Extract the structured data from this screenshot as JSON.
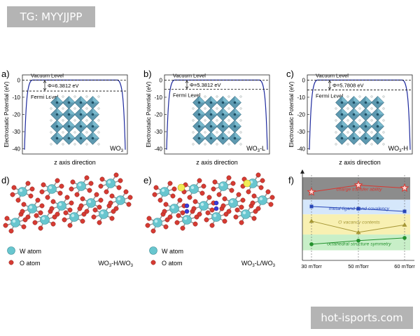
{
  "header_tag": "TG: MYYJJPP",
  "footer_watermark": "hot-isports.com",
  "colors": {
    "curve": "#1e2a9e",
    "w_atom": "#68c6cf",
    "o_atom": "#d63b33",
    "red_series": "#d9362f",
    "blue_series": "#2746b7",
    "olive_series": "#a59635",
    "green_series": "#23912d"
  },
  "chart_data": [
    {
      "type": "line",
      "panel": "a)",
      "ylabel": "Electrostatic Potential (eV)",
      "xlabel": "z axis direction",
      "yticks": [
        "0",
        "-10",
        "-20",
        "-30",
        "-40"
      ],
      "ylim": [
        -43,
        3
      ],
      "vacuum_label": "Vacuum Level",
      "fermi_label": "Fermi Level",
      "phi_label": "Φ=6.3812 eV",
      "phi": 6.3812,
      "material": "WO3",
      "material_base": "WO",
      "material_sub": "3",
      "material_suffix": ""
    },
    {
      "type": "line",
      "panel": "b)",
      "ylabel": "Electrostatic Potential (eV)",
      "xlabel": "z axis direction",
      "yticks": [
        "0",
        "-10",
        "-20",
        "-30",
        "-40"
      ],
      "ylim": [
        -43,
        3
      ],
      "vacuum_label": "Vacuum Level",
      "fermi_label": "Fermi Level",
      "phi_label": "Φ=5.3812 eV",
      "phi": 5.3812,
      "material": "WO3-L",
      "material_base": "WO",
      "material_sub": "3",
      "material_suffix": "-L"
    },
    {
      "type": "line",
      "panel": "c)",
      "ylabel": "Electrostatic Potential (eV)",
      "xlabel": "z axis direction",
      "yticks": [
        "0",
        "-10",
        "-20",
        "-30",
        "-40"
      ],
      "ylim": [
        -43,
        3
      ],
      "vacuum_label": "Vacuum Level",
      "fermi_label": "Fermi Level",
      "phi_label": "Φ=5.7808 eV",
      "phi": 5.7808,
      "material": "WO3-H",
      "material_base": "WO",
      "material_sub": "3",
      "material_suffix": "-H"
    },
    {
      "type": "line",
      "panel": "f)",
      "categories": [
        "30 mTorr",
        "50 mTorr",
        "60 mTorr"
      ],
      "series": [
        {
          "name": "charge transfer ability",
          "values": [
            3.55,
            3.85,
            3.72
          ],
          "marker": "star",
          "color_key": "red_series"
        },
        {
          "name": "metal-ligand bond covalency",
          "values": [
            2.9,
            2.8,
            2.68
          ],
          "marker": "square",
          "color_key": "blue_series"
        },
        {
          "name": "O vacancy contents",
          "values": [
            2.25,
            1.75,
            2.08
          ],
          "marker": "triangle",
          "color_key": "olive_series"
        },
        {
          "name": "octahedral structure symmetry",
          "values": [
            1.22,
            1.38,
            1.5
          ],
          "marker": "circle",
          "color_key": "green_series"
        }
      ],
      "ylim": [
        0.5,
        4.3
      ],
      "bands": [
        {
          "series": 0,
          "range": [
            3.2,
            4.2
          ],
          "color": "#8c8c8c"
        },
        {
          "series": 1,
          "range": [
            2.55,
            3.2
          ],
          "color": "#d5e7fb"
        },
        {
          "series": 2,
          "range": [
            1.65,
            2.55
          ],
          "color": "#f8f0b2"
        },
        {
          "series": 3,
          "range": [
            0.95,
            1.65
          ],
          "color": "#c8efc8"
        }
      ]
    }
  ],
  "structures": {
    "d": {
      "panel": "d)",
      "w_legend": "W atom",
      "o_legend": "O atom",
      "caption_base": "WO",
      "caption_sub1": "3",
      "caption_mid": "-H/WO",
      "caption_sub2": "3"
    },
    "e": {
      "panel": "e)",
      "w_legend": "W atom",
      "o_legend": "O atom",
      "caption_base": "WO",
      "caption_sub1": "3",
      "caption_mid": "-L/WO",
      "caption_sub2": "3"
    }
  }
}
